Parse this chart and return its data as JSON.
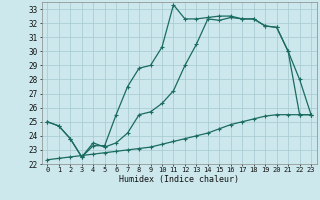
{
  "xlabel": "Humidex (Indice chaleur)",
  "xlim": [
    -0.5,
    23.5
  ],
  "ylim": [
    22,
    33.5
  ],
  "yticks": [
    22,
    23,
    24,
    25,
    26,
    27,
    28,
    29,
    30,
    31,
    32,
    33
  ],
  "xticks": [
    0,
    1,
    2,
    3,
    4,
    5,
    6,
    7,
    8,
    9,
    10,
    11,
    12,
    13,
    14,
    15,
    16,
    17,
    18,
    19,
    20,
    21,
    22,
    23
  ],
  "bg_color": "#cce8ec",
  "grid_color": "#aacdd4",
  "line_color": "#1a6b60",
  "series1_x": [
    0,
    1,
    2,
    3,
    4,
    5,
    6,
    7,
    8,
    9,
    10,
    11,
    12,
    13,
    14,
    15,
    16,
    17,
    18,
    19,
    20,
    21,
    22,
    23
  ],
  "series1_y": [
    25.0,
    24.7,
    23.8,
    22.5,
    23.3,
    23.3,
    25.5,
    27.5,
    28.8,
    29.0,
    30.3,
    33.3,
    32.3,
    32.3,
    32.4,
    32.5,
    32.5,
    32.3,
    32.3,
    31.8,
    31.7,
    30.0,
    28.0,
    25.5
  ],
  "series2_x": [
    0,
    1,
    2,
    3,
    4,
    5,
    6,
    7,
    8,
    9,
    10,
    11,
    12,
    13,
    14,
    15,
    16,
    17,
    18,
    19,
    20,
    21,
    22,
    23
  ],
  "series2_y": [
    25.0,
    24.7,
    23.8,
    22.5,
    23.5,
    23.2,
    23.5,
    24.2,
    25.5,
    25.7,
    26.3,
    27.2,
    29.0,
    30.5,
    32.3,
    32.2,
    32.4,
    32.3,
    32.3,
    31.8,
    31.7,
    30.0,
    25.5,
    25.5
  ],
  "series3_x": [
    0,
    1,
    2,
    3,
    4,
    5,
    6,
    7,
    8,
    9,
    10,
    11,
    12,
    13,
    14,
    15,
    16,
    17,
    18,
    19,
    20,
    21,
    22,
    23
  ],
  "series3_y": [
    22.3,
    22.4,
    22.5,
    22.6,
    22.7,
    22.8,
    22.9,
    23.0,
    23.1,
    23.2,
    23.4,
    23.6,
    23.8,
    24.0,
    24.2,
    24.5,
    24.8,
    25.0,
    25.2,
    25.4,
    25.5,
    25.5,
    25.5,
    25.5
  ]
}
